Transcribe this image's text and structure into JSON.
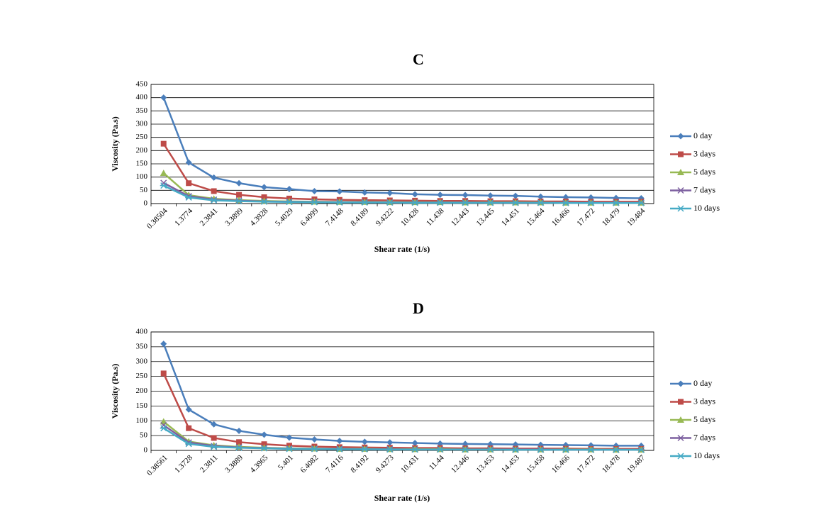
{
  "chart_data": [
    {
      "type": "line",
      "title": "C",
      "x_label": "Shear rate (1/s)",
      "y_label": "Viscosity (Pa.s)",
      "categories": [
        "0.38504",
        "1.3774",
        "2.3841",
        "3.3899",
        "4.3928",
        "5.4029",
        "6.4099",
        "7.4148",
        "8.4189",
        "9.4222",
        "10.428",
        "11.438",
        "12.443",
        "13.445",
        "14.451",
        "15.464",
        "16.466",
        "17.472",
        "18.479",
        "19.484"
      ],
      "series": [
        {
          "name": "0 day",
          "color": "#4a7ebb",
          "values": [
            400,
            155,
            98,
            77,
            62,
            55,
            47,
            46,
            42,
            40,
            35,
            33,
            32,
            30,
            29,
            26,
            24,
            23,
            21,
            20
          ]
        },
        {
          "name": "3 days",
          "color": "#be4b48",
          "values": [
            226,
            77,
            47,
            33,
            24,
            19,
            16,
            14,
            13,
            12,
            11,
            10,
            10,
            9,
            9,
            8,
            8,
            7,
            7,
            7
          ]
        },
        {
          "name": "5 days",
          "color": "#98b954",
          "values": [
            115,
            32,
            18,
            13,
            10,
            8,
            7,
            6,
            6,
            5,
            5,
            5,
            4,
            4,
            4,
            4,
            3,
            3,
            3,
            3
          ]
        },
        {
          "name": "7 days",
          "color": "#7d60a0",
          "values": [
            78,
            28,
            15,
            11,
            8,
            7,
            6,
            5,
            5,
            4,
            4,
            4,
            4,
            3,
            3,
            3,
            3,
            3,
            3,
            3
          ]
        },
        {
          "name": "10 days",
          "color": "#46aac5",
          "values": [
            68,
            23,
            12,
            9,
            7,
            6,
            5,
            4,
            4,
            4,
            3,
            3,
            3,
            3,
            3,
            3,
            2,
            2,
            2,
            2
          ]
        }
      ],
      "ylim": [
        0,
        450
      ],
      "yticks": [
        0,
        50,
        100,
        150,
        200,
        250,
        300,
        350,
        400,
        450
      ],
      "grid": true,
      "legend": "right"
    },
    {
      "type": "line",
      "title": "D",
      "x_label": "Shear rate (1/s)",
      "y_label": "Viscosity (Pa.s)",
      "categories": [
        "0.38561",
        "1.3728",
        "2.3811",
        "3.3889",
        "4.3965",
        "5.401",
        "6.4082",
        "7.4116",
        "8.4192",
        "9.4273",
        "10.431",
        "11.44",
        "12.446",
        "13.453",
        "14.453",
        "15.458",
        "16.466",
        "17.472",
        "18.478",
        "19.487"
      ],
      "series": [
        {
          "name": "0 day",
          "color": "#4a7ebb",
          "values": [
            360,
            138,
            88,
            66,
            53,
            43,
            37,
            32,
            29,
            27,
            25,
            23,
            22,
            21,
            20,
            19,
            18,
            17,
            16,
            16
          ]
        },
        {
          "name": "3 days",
          "color": "#be4b48",
          "values": [
            260,
            75,
            42,
            28,
            21,
            16,
            13,
            11,
            10,
            9,
            8,
            8,
            7,
            7,
            6,
            6,
            6,
            5,
            5,
            5
          ]
        },
        {
          "name": "5 days",
          "color": "#98b954",
          "values": [
            97,
            30,
            17,
            12,
            9,
            7,
            6,
            5,
            5,
            4,
            4,
            4,
            3,
            3,
            3,
            3,
            3,
            3,
            2,
            2
          ]
        },
        {
          "name": "7 days",
          "color": "#7d60a0",
          "values": [
            85,
            27,
            15,
            10,
            8,
            6,
            5,
            5,
            4,
            4,
            3,
            3,
            3,
            3,
            3,
            3,
            2,
            2,
            2,
            2
          ]
        },
        {
          "name": "10 days",
          "color": "#46aac5",
          "values": [
            75,
            22,
            12,
            9,
            7,
            5,
            5,
            4,
            4,
            3,
            3,
            3,
            3,
            3,
            2,
            2,
            2,
            2,
            2,
            2
          ]
        }
      ],
      "ylim": [
        0,
        400
      ],
      "yticks": [
        0,
        50,
        100,
        150,
        200,
        250,
        300,
        350,
        400
      ],
      "grid": true,
      "legend": "right"
    }
  ]
}
